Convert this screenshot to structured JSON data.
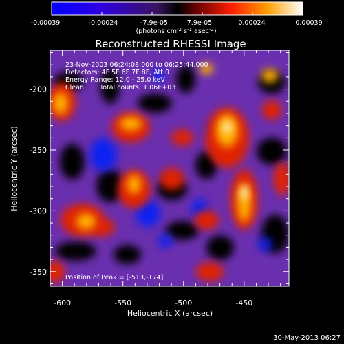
{
  "colorbar": {
    "ticks": [
      "-0.00039",
      "-0.00024",
      "-7.9e-05",
      "7.9e-05",
      "0.00024",
      "0.00039"
    ],
    "unit_parts": [
      "(photons cm",
      "-2",
      " s",
      "-1",
      " asec",
      "-2",
      ")"
    ]
  },
  "title": "Reconstructed RHESSI Image",
  "info": {
    "line1": "23-Nov-2003 06:24:08.000 to 06:25:44.000",
    "line2": "Detectors: 4F 5F 6F 7F 8F, Att 0",
    "line3": "Energy Range: 12.0 - 25.0 keV",
    "line4a": "Clean",
    "line4b": "Total counts: 1.06E+03"
  },
  "peak": "Position of Peak = [-513,-174]",
  "xaxis": {
    "label": "Heliocentric X (arcsec)",
    "ticks": [
      "-600",
      "-550",
      "-500",
      "-450"
    ],
    "values": [
      -600,
      -550,
      -500,
      -450
    ],
    "range": [
      -610,
      -413
    ]
  },
  "yaxis": {
    "label": "Heliocentric Y (arcsec)",
    "ticks": [
      "-200",
      "-250",
      "-300",
      "-350"
    ],
    "values": [
      -200,
      -250,
      -300,
      -350
    ],
    "range": [
      -362,
      -168
    ]
  },
  "date_stamp": "30-May-2013 06:27",
  "colors": {
    "low": "#0000ff",
    "mid": "#4000c0",
    "zero": "#000000",
    "high": "#ffffff"
  }
}
